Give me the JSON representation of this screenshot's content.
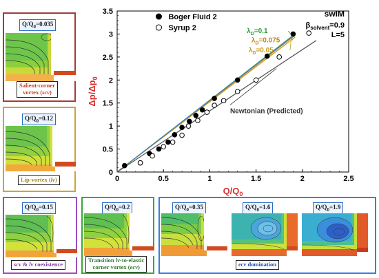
{
  "chart_data": {
    "type": "scatter",
    "xlabel": "Q/Q",
    "xlabel_sub": "0",
    "ylabel": "Δp/Δp",
    "ylabel_sub": "0",
    "xlim": [
      0,
      2.5
    ],
    "ylim": [
      0,
      3.5
    ],
    "x_ticks": [
      "0",
      "0.5",
      "1",
      "1.5",
      "2",
      "2.5"
    ],
    "y_ticks": [
      "0",
      "0.5",
      "1",
      "1.5",
      "2",
      "2.5",
      "3",
      "3.5"
    ],
    "x_tick_values": [
      0,
      0.5,
      1,
      1.5,
      2,
      2.5
    ],
    "y_tick_values": [
      0,
      0.5,
      1,
      1.5,
      2,
      2.5,
      3,
      3.5
    ],
    "grid": false,
    "series": [
      {
        "name": "Boger Fluid 2",
        "marker": "filled-circle",
        "color": "#000000",
        "x": [
          0.08,
          0.25,
          0.35,
          0.45,
          0.55,
          0.62,
          0.7,
          0.78,
          0.85,
          0.92,
          1.05,
          1.3,
          1.62,
          1.9
        ],
        "y": [
          0.14,
          0.2,
          0.4,
          0.5,
          0.65,
          0.81,
          0.97,
          1.1,
          1.23,
          1.35,
          1.6,
          2.0,
          2.52,
          3.0
        ]
      },
      {
        "name": "Syrup 2",
        "marker": "open-circle",
        "color": "#000000",
        "x": [
          0.25,
          0.38,
          0.5,
          0.6,
          0.7,
          0.77,
          0.87,
          0.97,
          1.05,
          1.15,
          1.3,
          1.5,
          1.75,
          2.07
        ],
        "y": [
          0.2,
          0.35,
          0.55,
          0.65,
          0.8,
          1.0,
          1.12,
          1.3,
          1.45,
          1.55,
          1.75,
          2.0,
          2.5,
          3.02
        ]
      }
    ],
    "lines": [
      {
        "name": "λ_D=0.1",
        "color": "#2ca02c",
        "x": [
          0,
          1.92
        ],
        "y": [
          0,
          3.0
        ]
      },
      {
        "name": "λ_D=0.075",
        "color": "#c8861a",
        "x": [
          0,
          1.92
        ],
        "y": [
          0,
          2.97
        ]
      },
      {
        "name": "λ_D=0.05",
        "color": "#c59a1a",
        "x": [
          0,
          1.92
        ],
        "y": [
          0,
          2.93
        ]
      },
      {
        "name": "",
        "color": "#3f7fd6",
        "x": [
          0,
          1.92
        ],
        "y": [
          0,
          2.99
        ]
      },
      {
        "name": "Newtonian (Predicted)",
        "color": "#555555",
        "x": [
          0,
          2.15
        ],
        "y": [
          0,
          2.86
        ]
      }
    ],
    "legend": {
      "placement": "top-left",
      "items": [
        "Boger Fluid 2",
        "Syrup 2"
      ]
    },
    "annotations": {
      "model": "swIM",
      "beta": "β",
      "beta_sub": "solvent",
      "beta_val": "=0.9",
      "L": "L=5",
      "lambda_sym": "λ",
      "lambda_sub": "D",
      "lambda1": "=0.1",
      "lambda2": "=0.075",
      "lambda3": "=0.05",
      "newtonian": "Newtonian (Predicted)"
    }
  },
  "panels": {
    "p1": {
      "q": "Q/Q",
      "q_sub": "0",
      "q_val": "=0.035",
      "caption_line1": "Salient-corner",
      "caption_line2": "vortex (",
      "caption_em": "scv",
      "caption_end": ")",
      "border": "#a23b3b"
    },
    "p2": {
      "q": "Q/Q",
      "q_sub": "0",
      "q_val": "=0.12",
      "caption_line1": "Lip-vortex (",
      "caption_em": "lv",
      "caption_end": ")",
      "border": "#c9a63a"
    },
    "p3": {
      "q": "Q/Q",
      "q_sub": "0",
      "q_val": "=0.15",
      "caption_em1": "scv",
      "caption_mid": " & ",
      "caption_em2": "lv",
      "caption_end": " coexistence",
      "border": "#9a4fc2"
    },
    "p4": {
      "q": "Q/Q",
      "q_sub": "0",
      "q_val": "=0.2",
      "caption_line1": "Transition ",
      "caption_em1": "lv",
      "caption_mid": "-to-elastic",
      "caption_line2": "corner vortex (",
      "caption_em2": "ecv",
      "caption_end": ")",
      "border": "#3aa63a"
    },
    "p5": {
      "q1": "=0.35",
      "q2": "=1.6",
      "q3": "=1.9",
      "q": "Q/Q",
      "q_sub": "0",
      "caption_em": "ecv",
      "caption_end": " domination",
      "border": "#3a7de0"
    }
  }
}
